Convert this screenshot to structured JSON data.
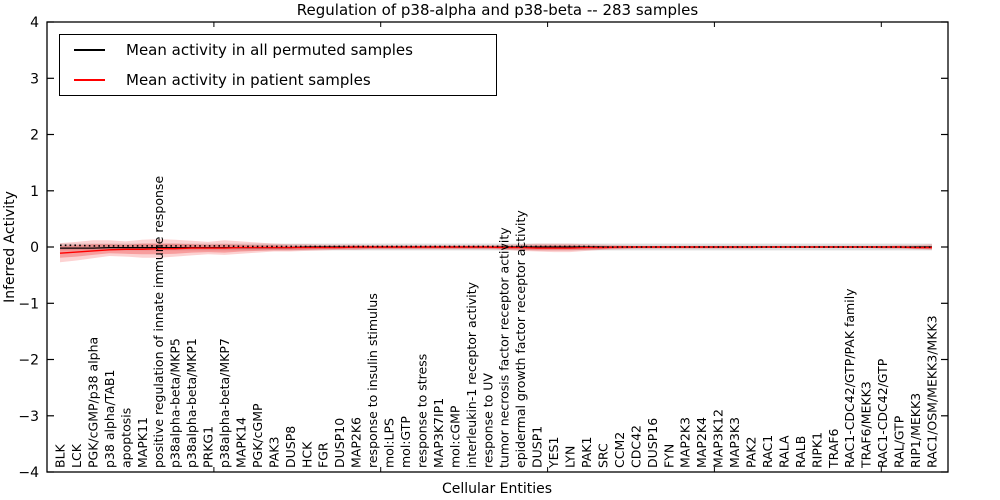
{
  "figure": {
    "title": "Regulation of p38-alpha and p38-beta -- 283 samples",
    "xlabel": "Cellular Entities",
    "ylabel": "Inferred Activity"
  },
  "legend": {
    "items": [
      {
        "label": "Mean activity in all permuted samples",
        "color": "#000000"
      },
      {
        "label": "Mean activity in patient samples",
        "color": "#ff0000"
      }
    ]
  },
  "chart_data": {
    "type": "line",
    "title": "Regulation of p38-alpha and p38-beta -- 283 samples",
    "xlabel": "Cellular Entities",
    "ylabel": "Inferred Activity",
    "ylim": [
      -4,
      4
    ],
    "yticks": [
      4,
      3,
      2,
      1,
      0,
      -1,
      -2,
      -3,
      -4
    ],
    "ytick_labels": [
      "4",
      "3",
      "2",
      "1",
      "0",
      "−1",
      "−2",
      "−3",
      "−4"
    ],
    "xticks_minor": [
      10,
      20,
      30,
      40,
      50
    ],
    "grid": false,
    "legend_position": "upper left",
    "categories": [
      "BLK",
      "LCK",
      "PGK/cGMP/p38 alpha",
      "p38 alpha/TAB1",
      "apoptosis",
      "MAPK11",
      "positive regulation of innate immune response",
      "p38alpha-beta/MKP5",
      "p38alpha-beta/MKP1",
      "PRKG1",
      "p38alpha-beta/MKP7",
      "MAPK14",
      "PGK/cGMP",
      "PAK3",
      "DUSP8",
      "HCK",
      "FGR",
      "DUSP10",
      "MAP2K6",
      "response to insulin stimulus",
      "mol:LPS",
      "mol:GTP",
      "response to stress",
      "MAP3K7IP1",
      "mol:cGMP",
      "interleukin-1 receptor activity",
      "response to UV",
      "tumor necrosis factor receptor activity",
      "epidermal growth factor receptor activity",
      "DUSP1",
      "YES1",
      "LYN",
      "PAK1",
      "SRC",
      "CCM2",
      "CDC42",
      "DUSP16",
      "FYN",
      "MAP2K3",
      "MAP2K4",
      "MAP3K12",
      "MAP3K3",
      "PAK2",
      "RAC1",
      "RALA",
      "RALB",
      "RIPK1",
      "TRAF6",
      "RAC1-CDC42/GTP/PAK family",
      "TRAF6/MEKK3",
      "RAC1-CDC42/GTP",
      "RAL/GTP",
      "RIP1/MEKK3",
      "RAC1/OSM/MEKK3/MKK3"
    ],
    "series": [
      {
        "name": "Mean activity in all permuted samples",
        "color": "#000000",
        "style": "solid",
        "width": 1.2,
        "values": [
          -0.02,
          -0.02,
          -0.02,
          -0.01,
          -0.01,
          -0.01,
          -0.01,
          -0.01,
          -0.01,
          -0.01,
          -0.01,
          -0.01,
          -0.01,
          -0.01,
          -0.01,
          0,
          0,
          0,
          0,
          0,
          0,
          0,
          0,
          0,
          0,
          0,
          0,
          0,
          0,
          0,
          0,
          0,
          0,
          0,
          0,
          0,
          0,
          0,
          0,
          0,
          0,
          0,
          0,
          0,
          0,
          0,
          0,
          0,
          0,
          0,
          0,
          0,
          0,
          0
        ]
      },
      {
        "name": "Mean activity in patient samples",
        "color": "#ff0000",
        "style": "solid",
        "width": 1.4,
        "values": [
          -0.11,
          -0.09,
          -0.07,
          -0.05,
          -0.04,
          -0.04,
          -0.03,
          -0.03,
          -0.02,
          -0.02,
          -0.02,
          -0.01,
          -0.01,
          -0.01,
          -0.01,
          -0.01,
          -0.01,
          -0.01,
          0,
          0,
          0,
          0,
          0,
          0,
          0,
          0,
          0,
          -0.01,
          -0.01,
          -0.02,
          -0.02,
          -0.02,
          -0.01,
          -0.01,
          0,
          0,
          0,
          0,
          0,
          0,
          0,
          0,
          0,
          0,
          0,
          0,
          0,
          0,
          0,
          0,
          0,
          0,
          -0.01,
          -0.01
        ]
      },
      {
        "name": "zero-reference-dotted",
        "color": "#000000",
        "style": "dotted",
        "width": 1.6,
        "values": [
          0.03,
          0.03,
          0.02,
          0.02,
          0.02,
          0.02,
          0.02,
          0.02,
          0.02,
          0.02,
          0.02,
          0.01,
          0.01,
          0.01,
          0.01,
          0.01,
          0.01,
          0.01,
          0.01,
          0.01,
          0.01,
          0.01,
          0.01,
          0.01,
          0.01,
          0.01,
          0.01,
          0.01,
          0.01,
          0.01,
          0.01,
          0.01,
          0.01,
          0,
          0,
          0,
          0,
          0,
          0,
          0,
          0,
          0,
          0,
          0,
          0,
          0,
          0,
          0,
          0,
          0,
          0,
          0,
          0,
          0
        ]
      }
    ],
    "bands": [
      {
        "name": "permuted-samples-range",
        "color": "#888888",
        "opacity": 0.28,
        "upper": 0.06,
        "lower": -0.06
      },
      {
        "name": "patient-samples-range-outer",
        "color": "#f03030",
        "opacity": 0.22,
        "upper": [
          0.07,
          0.09,
          0.12,
          0.12,
          0.1,
          0.13,
          0.14,
          0.13,
          0.11,
          0.09,
          0.12,
          0.1,
          0.08,
          0.06,
          0.05,
          0.05,
          0.04,
          0.04,
          0.04,
          0.03,
          0.03,
          0.03,
          0.03,
          0.03,
          0.03,
          0.03,
          0.03,
          0.04,
          0.05,
          0.06,
          0.06,
          0.06,
          0.05,
          0.04,
          0.03,
          0.02,
          0.02,
          0.02,
          0.02,
          0.02,
          0.02,
          0.02,
          0.02,
          0.02,
          0.02,
          0.02,
          0.02,
          0.02,
          0.02,
          0.02,
          0.02,
          0.03,
          0.03,
          0.05
        ],
        "lower": [
          -0.27,
          -0.24,
          -0.2,
          -0.16,
          -0.17,
          -0.19,
          -0.19,
          -0.17,
          -0.15,
          -0.13,
          -0.14,
          -0.12,
          -0.1,
          -0.08,
          -0.08,
          -0.07,
          -0.06,
          -0.05,
          -0.05,
          -0.04,
          -0.04,
          -0.04,
          -0.04,
          -0.04,
          -0.04,
          -0.04,
          -0.04,
          -0.05,
          -0.07,
          -0.08,
          -0.09,
          -0.09,
          -0.07,
          -0.05,
          -0.04,
          -0.03,
          -0.03,
          -0.03,
          -0.03,
          -0.03,
          -0.03,
          -0.03,
          -0.03,
          -0.02,
          -0.02,
          -0.02,
          -0.02,
          -0.02,
          -0.02,
          -0.02,
          -0.03,
          -0.03,
          -0.04,
          -0.05
        ]
      },
      {
        "name": "patient-samples-range-inner",
        "color": "#f03030",
        "opacity": 0.33,
        "upper": [
          0.02,
          0.03,
          0.05,
          0.05,
          0.04,
          0.06,
          0.06,
          0.06,
          0.05,
          0.04,
          0.05,
          0.04,
          0.03,
          0.03,
          0.02,
          0.02,
          0.02,
          0.02,
          0.02,
          0.01,
          0.01,
          0.01,
          0.01,
          0.01,
          0.01,
          0.01,
          0.01,
          0.02,
          0.02,
          0.03,
          0.03,
          0.03,
          0.02,
          0.02,
          0.01,
          0.01,
          0.01,
          0.01,
          0.01,
          0.01,
          0.01,
          0.01,
          0.01,
          0.01,
          0.01,
          0.01,
          0.01,
          0.01,
          0.01,
          0.01,
          0.01,
          0.01,
          0.01,
          0.02
        ],
        "lower": [
          -0.19,
          -0.17,
          -0.14,
          -0.11,
          -0.12,
          -0.13,
          -0.13,
          -0.12,
          -0.1,
          -0.09,
          -0.1,
          -0.08,
          -0.07,
          -0.06,
          -0.06,
          -0.05,
          -0.04,
          -0.04,
          -0.04,
          -0.03,
          -0.03,
          -0.03,
          -0.03,
          -0.03,
          -0.03,
          -0.03,
          -0.03,
          -0.04,
          -0.05,
          -0.06,
          -0.06,
          -0.06,
          -0.05,
          -0.04,
          -0.03,
          -0.02,
          -0.02,
          -0.02,
          -0.02,
          -0.02,
          -0.02,
          -0.02,
          -0.02,
          -0.01,
          -0.01,
          -0.01,
          -0.01,
          -0.01,
          -0.01,
          -0.01,
          -0.02,
          -0.02,
          -0.03,
          -0.04
        ]
      }
    ]
  }
}
